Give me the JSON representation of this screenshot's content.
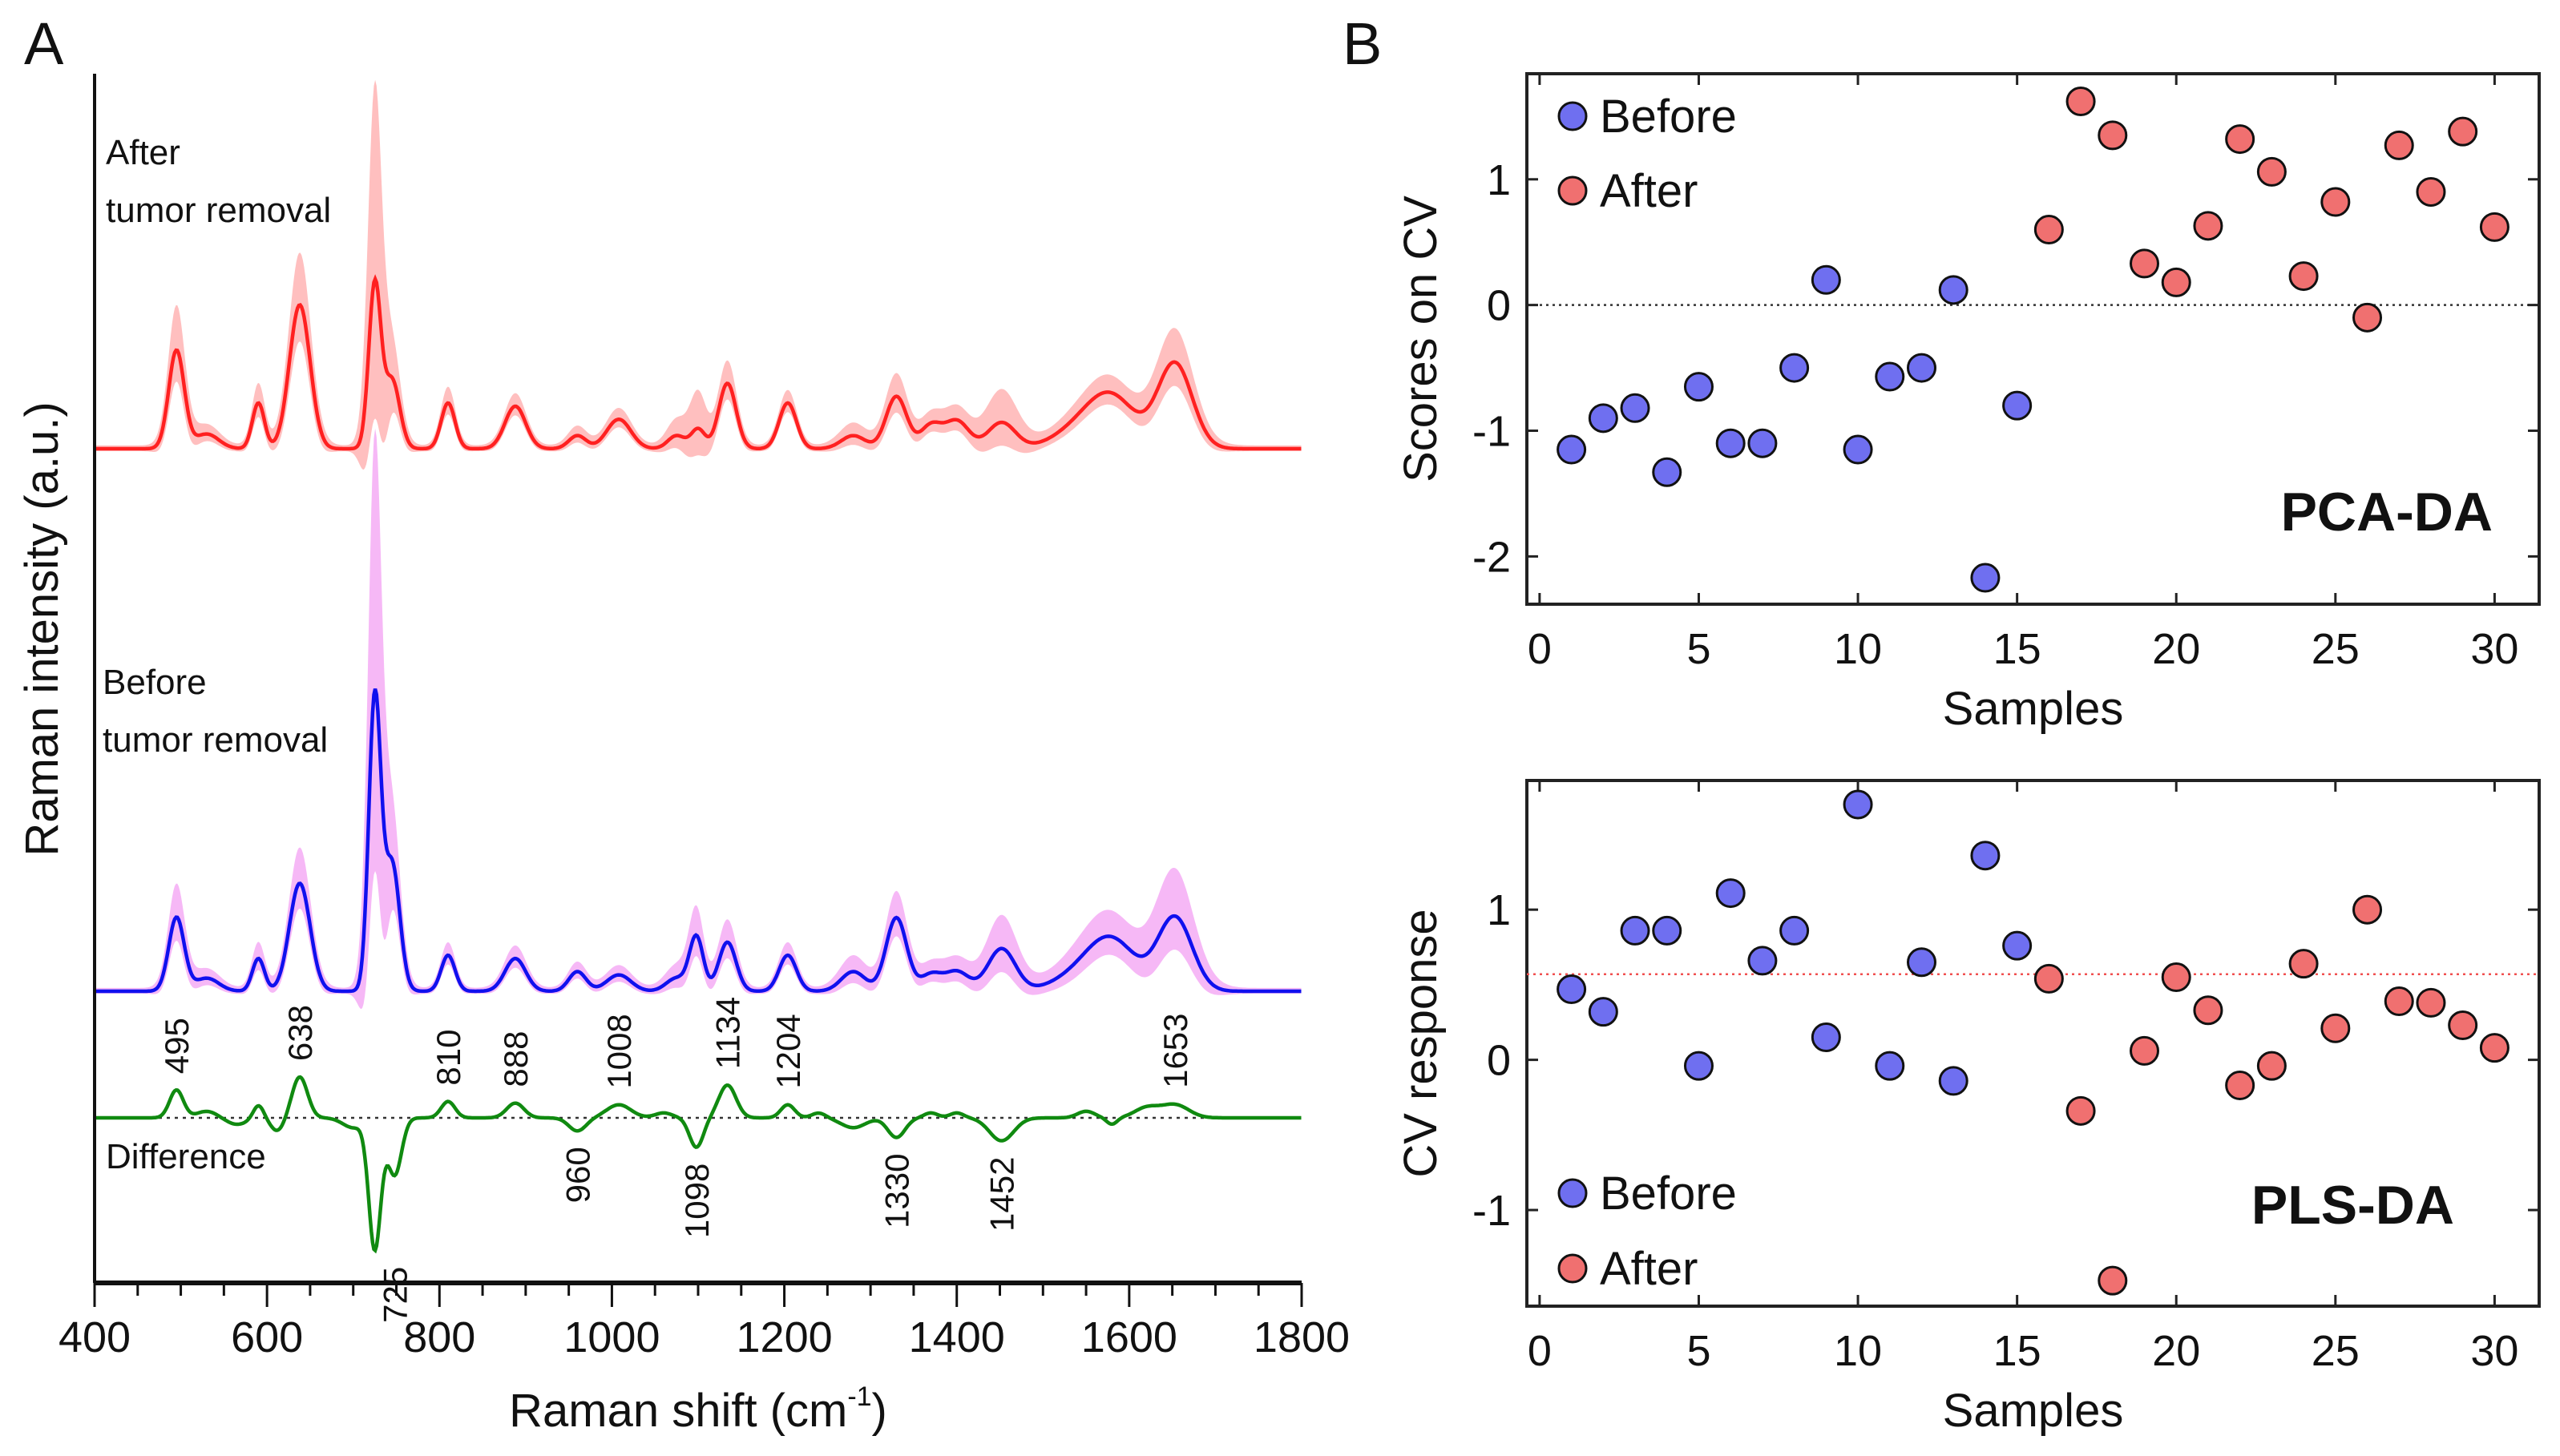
{
  "chart_data": [
    {
      "panel": "A",
      "type": "line",
      "xlabel": "Raman shift (cm",
      "xlabel_sup": "-1",
      "xlabel_close": ")",
      "ylabel": "Raman intensity (a.u.)",
      "xlim": [
        400,
        1800
      ],
      "xticks": [
        400,
        600,
        800,
        1000,
        1200,
        1400,
        1600,
        1800
      ],
      "series": [
        {
          "name": "After tumor removal",
          "label_lines": [
            "After",
            "tumor removal"
          ],
          "color": "#ff2020",
          "band_color": "#ffb8b8",
          "peaks": [
            [
              495,
              60,
              9,
              25
            ],
            [
              530,
              9,
              14,
              4
            ],
            [
              590,
              28,
              7,
              10
            ],
            [
              638,
              88,
              12,
              30
            ],
            [
              725,
              100,
              7,
              115
            ],
            [
              745,
              42,
              9,
              20
            ],
            [
              810,
              28,
              8,
              8
            ],
            [
              888,
              26,
              12,
              6
            ],
            [
              960,
              8,
              10,
              4
            ],
            [
              1008,
              18,
              14,
              5
            ],
            [
              1075,
              8,
              10,
              8
            ],
            [
              1100,
              12,
              8,
              20
            ],
            [
              1134,
              40,
              10,
              12
            ],
            [
              1204,
              28,
              10,
              6
            ],
            [
              1280,
              8,
              14,
              6
            ],
            [
              1330,
              32,
              12,
              12
            ],
            [
              1370,
              14,
              12,
              4
            ],
            [
              1400,
              17,
              14,
              6
            ],
            [
              1452,
              16,
              16,
              18
            ],
            [
              1540,
              10,
              30,
              4
            ],
            [
              1580,
              30,
              28,
              6
            ],
            [
              1653,
              52,
              20,
              18
            ]
          ]
        },
        {
          "name": "Before tumor removal",
          "label_lines": [
            "Before",
            "tumor removal"
          ],
          "color": "#1010ee",
          "band_color": "#f5b0f5",
          "peaks": [
            [
              495,
              45,
              9,
              18
            ],
            [
              530,
              8,
              14,
              4
            ],
            [
              590,
              20,
              7,
              8
            ],
            [
              638,
              66,
              12,
              20
            ],
            [
              725,
              178,
              7,
              150
            ],
            [
              745,
              78,
              9,
              30
            ],
            [
              810,
              22,
              8,
              6
            ],
            [
              888,
              20,
              12,
              6
            ],
            [
              960,
              12,
              10,
              4
            ],
            [
              1008,
              10,
              14,
              4
            ],
            [
              1075,
              8,
              12,
              6
            ],
            [
              1098,
              33,
              8,
              14
            ],
            [
              1134,
              30,
              10,
              12
            ],
            [
              1204,
              22,
              10,
              6
            ],
            [
              1280,
              12,
              14,
              8
            ],
            [
              1330,
              45,
              12,
              14
            ],
            [
              1370,
              10,
              12,
              4
            ],
            [
              1400,
              12,
              14,
              6
            ],
            [
              1452,
              26,
              16,
              18
            ],
            [
              1540,
              8,
              30,
              6
            ],
            [
              1580,
              30,
              28,
              10
            ],
            [
              1653,
              45,
              20,
              26
            ]
          ]
        },
        {
          "name": "Difference",
          "label_lines": [
            "Difference"
          ],
          "color": "#108a10",
          "peaks": [
            [
              495,
              17,
              8
            ],
            [
              530,
              4,
              12
            ],
            [
              565,
              -4,
              12
            ],
            [
              590,
              8,
              6
            ],
            [
              612,
              -8,
              8
            ],
            [
              638,
              25,
              9
            ],
            [
              700,
              -6,
              12
            ],
            [
              725,
              -80,
              7
            ],
            [
              748,
              -35,
              8
            ],
            [
              810,
              10,
              8
            ],
            [
              888,
              9,
              10
            ],
            [
              960,
              -8,
              10
            ],
            [
              1008,
              8,
              14
            ],
            [
              1060,
              3,
              10
            ],
            [
              1098,
              -18,
              8
            ],
            [
              1134,
              20,
              10
            ],
            [
              1204,
              8,
              8
            ],
            [
              1240,
              3,
              8
            ],
            [
              1280,
              -6,
              14
            ],
            [
              1330,
              -12,
              10
            ],
            [
              1370,
              3,
              8
            ],
            [
              1400,
              3,
              8
            ],
            [
              1452,
              -14,
              14
            ],
            [
              1550,
              4,
              10
            ],
            [
              1580,
              -4,
              6
            ],
            [
              1620,
              6,
              14
            ],
            [
              1653,
              8,
              16
            ]
          ]
        }
      ],
      "peak_labels_up": [
        "495",
        "638",
        "810",
        "888",
        "1008",
        "1134",
        "1204",
        "1653"
      ],
      "peak_labels_down": [
        "725",
        "960",
        "1098",
        "1330",
        "1452"
      ]
    },
    {
      "panel": "B",
      "type": "scatter",
      "method": "PCA-DA",
      "xlabel": "Samples",
      "ylabel": "Scores on CV",
      "xlim": [
        -0.4,
        31.4
      ],
      "ylim": [
        -2.38,
        1.84
      ],
      "xticks": [
        0,
        5,
        10,
        15,
        20,
        25,
        30
      ],
      "yticks": [
        -2,
        -1,
        0,
        1
      ],
      "reference_line": 0,
      "legend": "top-left",
      "series": [
        {
          "name": "Before",
          "color": "#6f6ff0",
          "x": [
            1,
            2,
            3,
            4,
            5,
            6,
            7,
            8,
            9,
            10,
            11,
            12,
            13,
            14,
            15
          ],
          "y": [
            -1.15,
            -0.9,
            -0.82,
            -1.33,
            -0.65,
            -1.1,
            -1.1,
            -0.5,
            0.2,
            -1.15,
            -0.57,
            -0.5,
            0.12,
            -2.17,
            -0.8
          ]
        },
        {
          "name": "After",
          "color": "#f07070",
          "x": [
            16,
            17,
            18,
            19,
            20,
            21,
            22,
            23,
            24,
            25,
            26,
            27,
            28,
            29,
            30
          ],
          "y": [
            0.6,
            1.62,
            1.35,
            0.33,
            0.18,
            0.63,
            1.32,
            1.06,
            0.23,
            0.82,
            -0.1,
            1.27,
            0.9,
            1.38,
            0.62
          ]
        }
      ]
    },
    {
      "panel": "B",
      "type": "scatter",
      "method": "PLS-DA",
      "xlabel": "Samples",
      "ylabel": "CV response",
      "xlim": [
        -0.4,
        31.4
      ],
      "ylim": [
        -1.64,
        1.86
      ],
      "xticks": [
        0,
        5,
        10,
        15,
        20,
        25,
        30
      ],
      "yticks": [
        -1,
        0,
        1
      ],
      "reference_line": 0.57,
      "legend": "bottom-left",
      "series": [
        {
          "name": "Before",
          "color": "#6f6ff0",
          "x": [
            1,
            2,
            3,
            4,
            5,
            6,
            7,
            8,
            9,
            10,
            11,
            12,
            13,
            14,
            15
          ],
          "y": [
            0.47,
            0.32,
            0.86,
            0.86,
            -0.04,
            1.11,
            0.66,
            0.86,
            0.15,
            1.7,
            -0.04,
            0.65,
            -0.14,
            1.36,
            0.76
          ]
        },
        {
          "name": "After",
          "color": "#f07070",
          "x": [
            16,
            17,
            18,
            19,
            20,
            21,
            22,
            23,
            24,
            25,
            26,
            27,
            28,
            29,
            30
          ],
          "y": [
            0.54,
            -0.34,
            -1.47,
            0.06,
            0.55,
            0.33,
            -0.17,
            -0.04,
            0.64,
            0.21,
            1.0,
            0.39,
            0.38,
            0.23,
            0.08
          ]
        }
      ]
    }
  ]
}
